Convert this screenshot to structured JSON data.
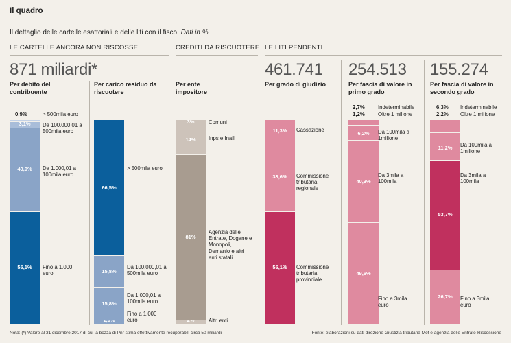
{
  "header": {
    "title": "Il quadro",
    "subtitle": "Il dettaglio delle cartelle esattoriali e delle liti con il fisco.",
    "subtitle_note": "Dati in %"
  },
  "sections": {
    "cartelle": "LE CARTELLE ANCORA NON RISCOSSE",
    "crediti": "CREDITI DA RISCUOTERE",
    "liti": "LE LITI PENDENTI"
  },
  "totals": {
    "cartelle": "871 miliardi*",
    "liti_grado": "461.741",
    "liti_primo": "254.513",
    "liti_secondo": "155.274"
  },
  "colors": {
    "blue_dark": "#0b5f9c",
    "blue_mid": "#8aa4c7",
    "blue_light": "#a9bdd9",
    "taupe": "#a89c90",
    "taupe_light": "#cdc3ba",
    "crimson": "#c0305e",
    "pink": "#df8a9f",
    "pink_light": "#ebb0bf"
  },
  "chart_data": [
    {
      "type": "bar",
      "stacked": true,
      "title": "Per debito del contribuente",
      "segments": [
        {
          "label": "Fino a 1.000 euro",
          "value": 55.1,
          "value_label": "55,1%",
          "color": "#0b5f9c"
        },
        {
          "label": "Da 1.000,01 a 100mila euro",
          "value": 40.9,
          "value_label": "40,9%",
          "color": "#8aa4c7"
        },
        {
          "label": "Da 100.000,01 a 500mila euro",
          "value": 3.1,
          "value_label": "3,1%",
          "color": "#a9bdd9"
        },
        {
          "label": "> 500mila euro",
          "value": 0.9,
          "value_label": "0,9%",
          "color": "#c3d1e6"
        }
      ]
    },
    {
      "type": "bar",
      "stacked": true,
      "title": "Per carico residuo da riscuotere",
      "segments": [
        {
          "label": "Fino a 1.000 euro",
          "value": 1.9,
          "value_label": "1,9%",
          "color": "#8aa4c7"
        },
        {
          "label": "Da 1.000,01 a 100mila euro",
          "value": 15.8,
          "value_label": "15,8%",
          "color": "#8aa4c7"
        },
        {
          "label": "Da 100.000,01 a 500mila euro",
          "value": 15.8,
          "value_label": "15,8%",
          "color": "#8aa4c7"
        },
        {
          "label": "> 500mila euro",
          "value": 66.5,
          "value_label": "66,5%",
          "color": "#0b5f9c"
        }
      ]
    },
    {
      "type": "bar",
      "stacked": true,
      "title": "Per ente impositore",
      "segments": [
        {
          "label": "Altri enti",
          "value": 2,
          "value_label": "2%",
          "color": "#cdc3ba"
        },
        {
          "label": "Agenzia delle Entrate, Dogane e Monopoli, Demanio e altri enti statali",
          "value": 81,
          "value_label": "81%",
          "color": "#a89c90"
        },
        {
          "label": "Inps e Inail",
          "value": 14,
          "value_label": "14%",
          "color": "#cdc3ba"
        },
        {
          "label": "Comuni",
          "value": 3,
          "value_label": "3%",
          "color": "#cdc3ba"
        }
      ]
    },
    {
      "type": "bar",
      "stacked": true,
      "title": "Per grado di giudizio",
      "segments": [
        {
          "label": "Commissione tributaria provinciale",
          "value": 55.1,
          "value_label": "55,1%",
          "color": "#c0305e"
        },
        {
          "label": "Commissione tributaria regionale",
          "value": 33.6,
          "value_label": "33,6%",
          "color": "#df8a9f"
        },
        {
          "label": "Cassazione",
          "value": 11.3,
          "value_label": "11,3%",
          "color": "#df8a9f"
        }
      ]
    },
    {
      "type": "bar",
      "stacked": true,
      "title": "Per fascia di valore in primo grado",
      "segments": [
        {
          "label": "Fino a 3mila euro",
          "value": 49.6,
          "value_label": "49,6%",
          "color": "#df8a9f"
        },
        {
          "label": "Da 3mila a 100mila",
          "value": 40.3,
          "value_label": "40,3%",
          "color": "#df8a9f"
        },
        {
          "label": "Da 100mila a 1milione",
          "value": 6.2,
          "value_label": "6,2%",
          "color": "#df8a9f"
        },
        {
          "label": "Oltre 1 milione",
          "value": 1.2,
          "value_label": "1,2%",
          "color": "#df8a9f"
        },
        {
          "label": "Indeterminabile",
          "value": 2.7,
          "value_label": "2,7%",
          "color": "#df8a9f"
        }
      ]
    },
    {
      "type": "bar",
      "stacked": true,
      "title": "Per fascia di valore in secondo grado",
      "segments": [
        {
          "label": "Fino a 3mila euro",
          "value": 26.7,
          "value_label": "26,7%",
          "color": "#df8a9f"
        },
        {
          "label": "Da 3mila a 100mila",
          "value": 53.7,
          "value_label": "53,7%",
          "color": "#c0305e"
        },
        {
          "label": "Da 100mila a 1milione",
          "value": 11.2,
          "value_label": "11,2%",
          "color": "#df8a9f"
        },
        {
          "label": "Oltre 1 milione",
          "value": 2.2,
          "value_label": "2,2%",
          "color": "#df8a9f"
        },
        {
          "label": "Indeterminabile",
          "value": 6.3,
          "value_label": "6,3%",
          "color": "#df8a9f"
        }
      ]
    }
  ],
  "footer": {
    "note": "Nota: (*) Valore al 31 dicembre 2017 di cui la bozza di Pnr stima effettivamente recuperabili circa 50 miliardi",
    "source": "Fonte: elaborazioni su dati direzione Giustizia tributaria Mef e agenzia delle Entrate-Riscossione"
  }
}
